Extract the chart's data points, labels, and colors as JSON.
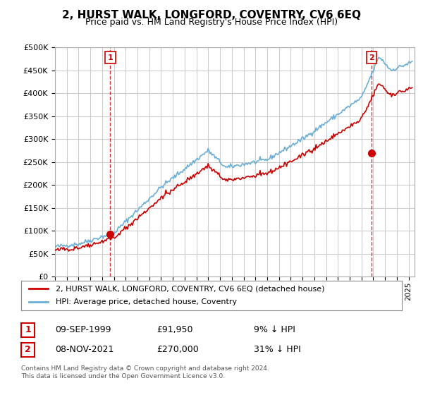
{
  "title": "2, HURST WALK, LONGFORD, COVENTRY, CV6 6EQ",
  "subtitle": "Price paid vs. HM Land Registry's House Price Index (HPI)",
  "legend_line1": "2, HURST WALK, LONGFORD, COVENTRY, CV6 6EQ (detached house)",
  "legend_line2": "HPI: Average price, detached house, Coventry",
  "footer": "Contains HM Land Registry data © Crown copyright and database right 2024.\nThis data is licensed under the Open Government Licence v3.0.",
  "table_rows": [
    {
      "num": "1",
      "date": "09-SEP-1999",
      "price": "£91,950",
      "note": "9% ↓ HPI"
    },
    {
      "num": "2",
      "date": "08-NOV-2021",
      "price": "£270,000",
      "note": "31% ↓ HPI"
    }
  ],
  "sale1_year": 1999.69,
  "sale1_price": 91950,
  "sale2_year": 2021.85,
  "sale2_price": 270000,
  "hpi_color": "#6baed6",
  "sale_color": "#cc0000",
  "grid_color": "#cccccc",
  "bg_color": "#ffffff",
  "ylim": [
    0,
    500000
  ],
  "xlim_start": 1995.0,
  "xlim_end": 2025.5,
  "yticks": [
    0,
    50000,
    100000,
    150000,
    200000,
    250000,
    300000,
    350000,
    400000,
    450000,
    500000
  ]
}
